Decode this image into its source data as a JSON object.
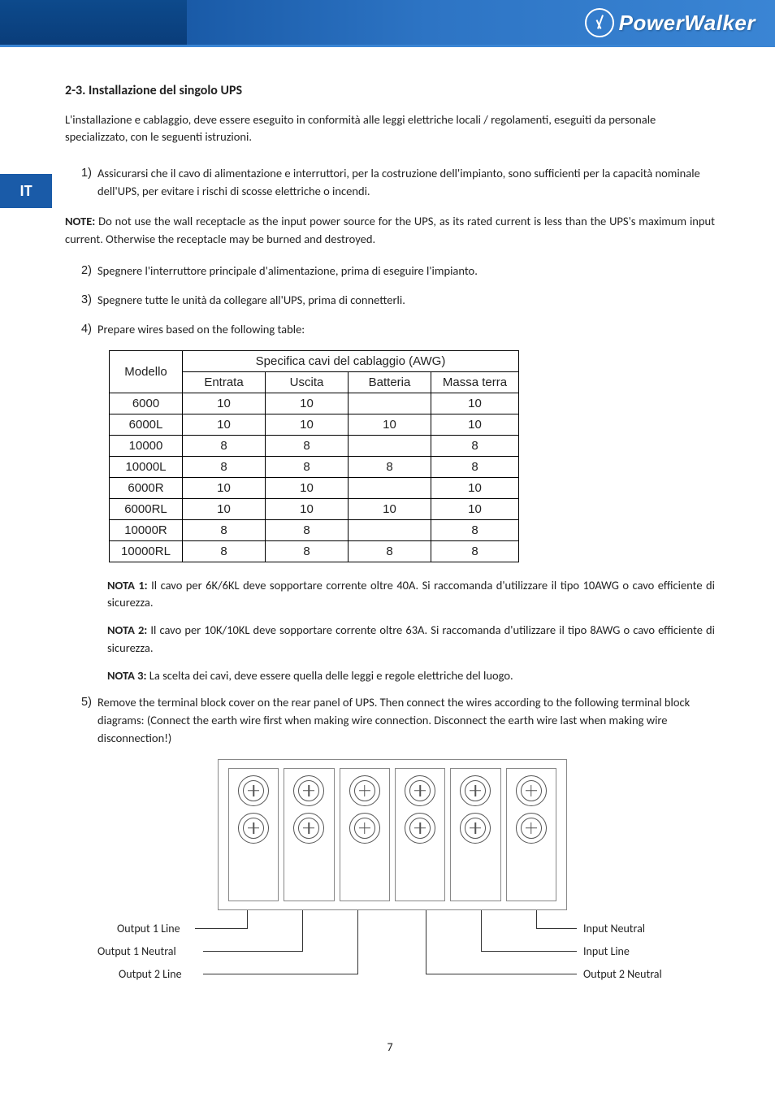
{
  "brand": "PowerWalker",
  "lang_tab": "IT",
  "page_number": "7",
  "section": {
    "heading": "2-3. Installazione del singolo UPS",
    "intro": "L'installazione e cablaggio, deve essere eseguito in conformità alle leggi elettriche locali / regolamenti, eseguiti da personale specializzato, con le seguenti istruzioni."
  },
  "list": {
    "items": [
      "Assicurarsi che il cavo di alimentazione e interruttori, per la costruzione dell'impianto, sono sufficienti per la capacità nominale dell'UPS, per evitare i rischi di scosse elettriche o incendi.",
      "Spegnere l'interruttore principale d'alimentazione, prima di eseguire l'impianto.",
      "Spegnere tutte le unità da collegare all'UPS, prima di connetterli.",
      "Prepare wires based on the following table:",
      "Remove the terminal block cover on the rear panel of UPS. Then connect the wires according to the following terminal block diagrams: (Connect the earth wire first when making wire connection. Disconnect the earth wire last when making wire disconnection!)"
    ]
  },
  "note_main": {
    "label": "NOTE:",
    "text": " Do not use the wall receptacle as the input power source for the UPS, as its rated current is less than the UPS's maximum input current. Otherwise the receptacle may be burned and destroyed."
  },
  "table": {
    "model_header": "Modello",
    "spec_header": "Specifica cavi del cablaggio (AWG)",
    "columns": [
      "Entrata",
      "Uscita",
      "Batteria",
      "Massa terra"
    ],
    "rows": [
      [
        "6000",
        "10",
        "10",
        "",
        "10"
      ],
      [
        "6000L",
        "10",
        "10",
        "10",
        "10"
      ],
      [
        "10000",
        "8",
        "8",
        "",
        "8"
      ],
      [
        "10000L",
        "8",
        "8",
        "8",
        "8"
      ],
      [
        "6000R",
        "10",
        "10",
        "",
        "10"
      ],
      [
        "6000RL",
        "10",
        "10",
        "10",
        "10"
      ],
      [
        "10000R",
        "8",
        "8",
        "",
        "8"
      ],
      [
        "10000RL",
        "8",
        "8",
        "8",
        "8"
      ]
    ]
  },
  "notes": {
    "n1_label": "NOTA 1:",
    "n1_text": " Il cavo per 6K/6KL deve sopportare corrente oltre 40A. Si raccomanda d'utilizzare il tipo 10AWG o cavo efficiente di sicurezza.",
    "n2_label": "NOTA 2:",
    "n2_text": " Il cavo per 10K/10KL deve sopportare corrente oltre 63A. Si raccomanda d'utilizzare il tipo 8AWG o cavo efficiente di sicurezza.",
    "n3_label": "NOTA 3:",
    "n3_text": " La scelta dei cavi, deve essere quella delle leggi e regole elettriche del luogo."
  },
  "diagram_labels": {
    "out1_line": "Output 1 Line",
    "out1_neutral": "Output  1  Neutral",
    "out2_line": "Output 2 Line",
    "in_neutral": "Input Neutral",
    "in_line": "Input Line",
    "out2_neutral": "Output 2 Neutral"
  }
}
